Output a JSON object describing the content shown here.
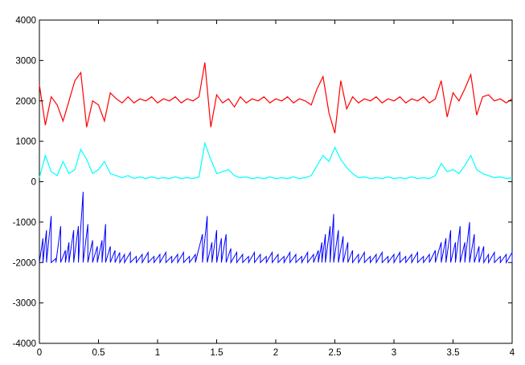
{
  "chart_data": {
    "type": "line",
    "title": "",
    "xlabel": "",
    "ylabel": "",
    "xlim": [
      0,
      4
    ],
    "ylim": [
      -4000,
      4000
    ],
    "grid": false,
    "xticks": [
      0,
      0.5,
      1,
      1.5,
      2,
      2.5,
      3,
      3.5,
      4
    ],
    "xtick_labels": [
      "0",
      "0.5",
      "1",
      "1.5",
      "2",
      "2.5",
      "3",
      "3.5",
      "4"
    ],
    "yticks": [
      4000,
      3000,
      2000,
      1000,
      0,
      -1000,
      -2000,
      -3000,
      -4000
    ],
    "ytick_labels": [
      "4000",
      "3000",
      "2000",
      "1000",
      "0",
      "-1000",
      "-2000",
      "-3000",
      "-4000"
    ],
    "x_step": 0.05,
    "series": [
      {
        "name": "red",
        "color": "#ff0000",
        "values": [
          2400,
          1400,
          2100,
          1900,
          1500,
          2000,
          2500,
          2700,
          1350,
          2000,
          1900,
          1500,
          2200,
          2050,
          1950,
          2100,
          1950,
          2050,
          2000,
          2100,
          1950,
          2050,
          2000,
          2100,
          1950,
          2050,
          2000,
          2100,
          2950,
          1350,
          2150,
          1950,
          2050,
          1850,
          2100,
          1950,
          2050,
          2000,
          2100,
          1950,
          2050,
          2000,
          2100,
          1950,
          2050,
          2000,
          1900,
          2300,
          2600,
          1700,
          1200,
          2500,
          1800,
          2100,
          1950,
          2050,
          2000,
          2100,
          1950,
          2050,
          2000,
          2100,
          1950,
          2050,
          2000,
          2100,
          1950,
          2050,
          2500,
          1600,
          2200,
          2000,
          2300,
          2650,
          1650,
          2100,
          2150,
          2000,
          2050,
          1950,
          2050
        ]
      },
      {
        "name": "cyan",
        "color": "#00ffff",
        "values": [
          100,
          650,
          250,
          150,
          500,
          200,
          300,
          800,
          550,
          200,
          300,
          500,
          200,
          150,
          100,
          150,
          80,
          120,
          80,
          120,
          80,
          100,
          80,
          120,
          80,
          100,
          80,
          120,
          950,
          550,
          200,
          250,
          300,
          150,
          100,
          120,
          80,
          100,
          80,
          120,
          80,
          100,
          80,
          120,
          80,
          100,
          150,
          400,
          650,
          500,
          850,
          550,
          350,
          200,
          100,
          120,
          80,
          100,
          80,
          120,
          80,
          100,
          80,
          120,
          80,
          100,
          80,
          150,
          450,
          250,
          300,
          200,
          400,
          650,
          300,
          200,
          150,
          100,
          120,
          80,
          100
        ]
      }
    ],
    "sawtooth_series": {
      "name": "blue",
      "color": "#0000ff",
      "baseline": -2000,
      "teeth": [
        [
          0.03,
          -1400
        ],
        [
          0.06,
          -1200
        ],
        [
          0.1,
          -850
        ],
        [
          0.14,
          -1900
        ],
        [
          0.18,
          -1100
        ],
        [
          0.22,
          -1700
        ],
        [
          0.25,
          -1500
        ],
        [
          0.29,
          -1200
        ],
        [
          0.33,
          -1100
        ],
        [
          0.37,
          -250
        ],
        [
          0.41,
          -1050
        ],
        [
          0.45,
          -1450
        ],
        [
          0.49,
          -1600
        ],
        [
          0.53,
          -1450
        ],
        [
          0.56,
          -1050
        ],
        [
          0.6,
          -1600
        ],
        [
          0.64,
          -1700
        ],
        [
          0.68,
          -1750
        ],
        [
          0.72,
          -1800
        ],
        [
          0.77,
          -1750
        ],
        [
          0.82,
          -1850
        ],
        [
          0.87,
          -1800
        ],
        [
          0.92,
          -1750
        ],
        [
          0.97,
          -1850
        ],
        [
          1.02,
          -1800
        ],
        [
          1.07,
          -1750
        ],
        [
          1.12,
          -1850
        ],
        [
          1.17,
          -1800
        ],
        [
          1.22,
          -1750
        ],
        [
          1.27,
          -1850
        ],
        [
          1.32,
          -1800
        ],
        [
          1.38,
          -1300
        ],
        [
          1.42,
          -850
        ],
        [
          1.46,
          -1500
        ],
        [
          1.5,
          -1200
        ],
        [
          1.54,
          -1400
        ],
        [
          1.58,
          -1300
        ],
        [
          1.62,
          -1650
        ],
        [
          1.67,
          -1750
        ],
        [
          1.72,
          -1800
        ],
        [
          1.77,
          -1850
        ],
        [
          1.82,
          -1750
        ],
        [
          1.87,
          -1800
        ],
        [
          1.92,
          -1850
        ],
        [
          1.97,
          -1750
        ],
        [
          2.02,
          -1800
        ],
        [
          2.07,
          -1850
        ],
        [
          2.12,
          -1750
        ],
        [
          2.17,
          -1800
        ],
        [
          2.22,
          -1850
        ],
        [
          2.27,
          -1750
        ],
        [
          2.32,
          -1800
        ],
        [
          2.36,
          -1700
        ],
        [
          2.39,
          -1500
        ],
        [
          2.42,
          -1300
        ],
        [
          2.46,
          -1100
        ],
        [
          2.49,
          -800
        ],
        [
          2.53,
          -1200
        ],
        [
          2.57,
          -1350
        ],
        [
          2.61,
          -1500
        ],
        [
          2.65,
          -1700
        ],
        [
          2.7,
          -1800
        ],
        [
          2.75,
          -1750
        ],
        [
          2.8,
          -1850
        ],
        [
          2.85,
          -1800
        ],
        [
          2.9,
          -1750
        ],
        [
          2.95,
          -1850
        ],
        [
          3.0,
          -1800
        ],
        [
          3.05,
          -1750
        ],
        [
          3.1,
          -1850
        ],
        [
          3.15,
          -1800
        ],
        [
          3.2,
          -1750
        ],
        [
          3.25,
          -1850
        ],
        [
          3.3,
          -1800
        ],
        [
          3.35,
          -1700
        ],
        [
          3.4,
          -1500
        ],
        [
          3.44,
          -1400
        ],
        [
          3.48,
          -1200
        ],
        [
          3.52,
          -1500
        ],
        [
          3.56,
          -1100
        ],
        [
          3.6,
          -1500
        ],
        [
          3.64,
          -1000
        ],
        [
          3.68,
          -1300
        ],
        [
          3.72,
          -1600
        ],
        [
          3.76,
          -1600
        ],
        [
          3.8,
          -1800
        ],
        [
          3.85,
          -1750
        ],
        [
          3.9,
          -1850
        ],
        [
          3.95,
          -1800
        ],
        [
          4.0,
          -1750
        ]
      ]
    }
  }
}
